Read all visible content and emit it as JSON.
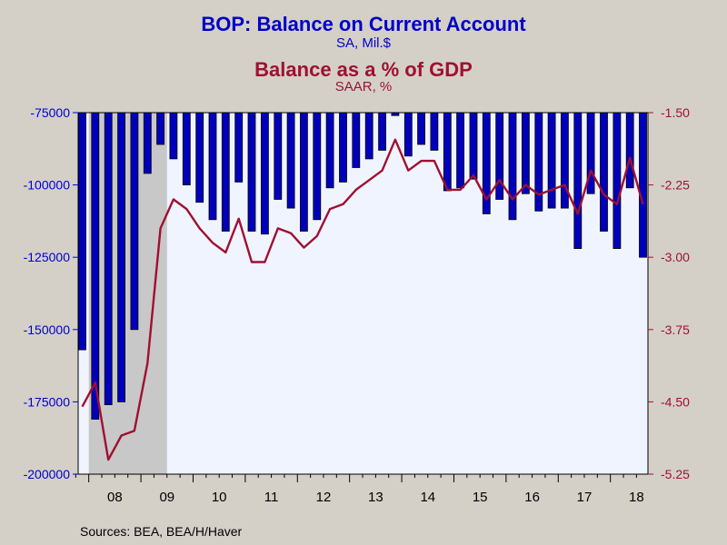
{
  "header": {
    "title": "BOP: Balance on Current Account",
    "subtitle": "SA, Mil.$",
    "title2": "Balance as a % of GDP",
    "subtitle2": "SAAR, %"
  },
  "source": "Sources:  BEA, BEA/H/Haver",
  "colors": {
    "bar": "#0000bb",
    "line": "#a01030",
    "recession": "#c8c8c8",
    "plot_bg": "#f0f4ff",
    "frame_bg": "#d4d0c8"
  },
  "chart_data": {
    "type": "bar",
    "x_tick_labels": [
      "08",
      "09",
      "10",
      "11",
      "12",
      "13",
      "14",
      "15",
      "16",
      "17",
      "18"
    ],
    "left_axis": {
      "ylim": [
        -200000,
        -75000
      ],
      "ticks": [
        "-75000",
        "-100000",
        "-125000",
        "-150000",
        "-175000",
        "-200000"
      ],
      "tick_values": [
        -75000,
        -100000,
        -125000,
        -150000,
        -175000,
        -200000
      ]
    },
    "right_axis": {
      "ylim": [
        -5.25,
        -1.5
      ],
      "ticks": [
        "-1.50",
        "-2.25",
        "-3.00",
        "-3.75",
        "-4.50",
        "-5.25"
      ],
      "tick_values": [
        -1.5,
        -2.25,
        -3.0,
        -3.75,
        -4.5,
        -5.25
      ]
    },
    "recession": {
      "start": "2008 Q1",
      "end": "2009 Q2"
    },
    "x": [
      "2007 Q4",
      "2008 Q1",
      "2008 Q2",
      "2008 Q3",
      "2008 Q4",
      "2009 Q1",
      "2009 Q2",
      "2009 Q3",
      "2009 Q4",
      "2010 Q1",
      "2010 Q2",
      "2010 Q3",
      "2010 Q4",
      "2011 Q1",
      "2011 Q2",
      "2011 Q3",
      "2011 Q4",
      "2012 Q1",
      "2012 Q2",
      "2012 Q3",
      "2012 Q4",
      "2013 Q1",
      "2013 Q2",
      "2013 Q3",
      "2013 Q4",
      "2014 Q1",
      "2014 Q2",
      "2014 Q3",
      "2014 Q4",
      "2015 Q1",
      "2015 Q2",
      "2015 Q3",
      "2015 Q4",
      "2016 Q1",
      "2016 Q2",
      "2016 Q3",
      "2016 Q4",
      "2017 Q1",
      "2017 Q2",
      "2017 Q3",
      "2017 Q4",
      "2018 Q1",
      "2018 Q2",
      "2018 Q3"
    ],
    "series": [
      {
        "type": "bar",
        "axis": "left",
        "values": [
          -157000,
          -181000,
          -176000,
          -175000,
          -150000,
          -96000,
          -86000,
          -91000,
          -100000,
          -106000,
          -112000,
          -116000,
          -99000,
          -116000,
          -117000,
          -105000,
          -108000,
          -116000,
          -112000,
          -101000,
          -99000,
          -94000,
          -91000,
          -88000,
          -76000,
          -90000,
          -86000,
          -88000,
          -102000,
          -101000,
          -98000,
          -110000,
          -105000,
          -112000,
          -103000,
          -109000,
          -108000,
          -108000,
          -122000,
          -103000,
          -116000,
          -122000,
          -101000,
          -125000
        ]
      },
      {
        "type": "line",
        "axis": "right",
        "values": [
          -4.55,
          -4.3,
          -5.1,
          -4.85,
          -4.8,
          -4.1,
          -2.7,
          -2.4,
          -2.5,
          -2.7,
          -2.85,
          -2.95,
          -2.6,
          -3.05,
          -3.05,
          -2.7,
          -2.75,
          -2.9,
          -2.78,
          -2.5,
          -2.45,
          -2.3,
          -2.2,
          -2.1,
          -1.78,
          -2.1,
          -2.0,
          -2.0,
          -2.3,
          -2.3,
          -2.15,
          -2.4,
          -2.2,
          -2.4,
          -2.25,
          -2.35,
          -2.3,
          -2.25,
          -2.55,
          -2.1,
          -2.35,
          -2.45,
          -1.97,
          -2.45
        ]
      }
    ]
  }
}
